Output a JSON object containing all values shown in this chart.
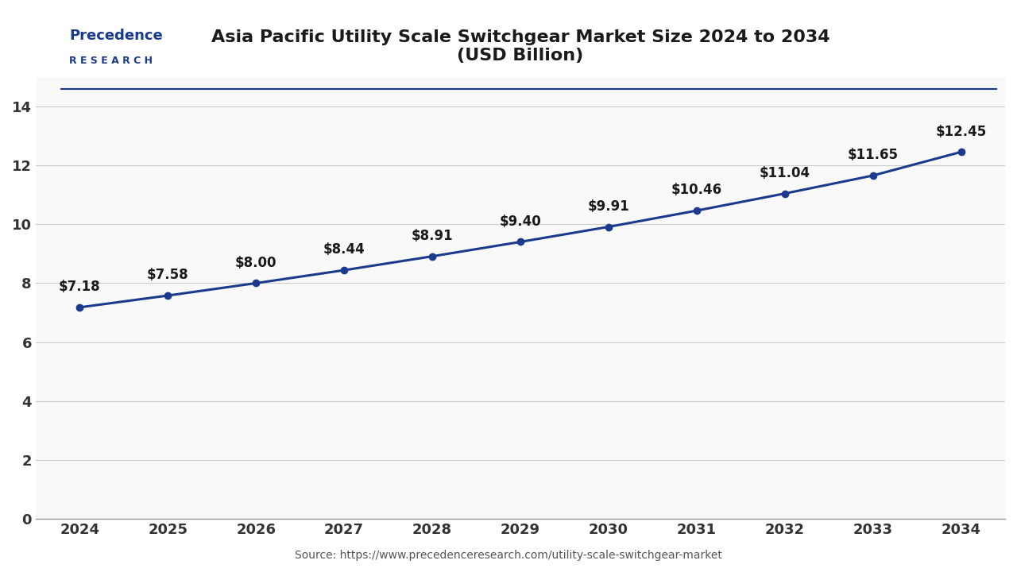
{
  "title_line1": "Asia Pacific Utility Scale Switchgear Market Size 2024 to 2034",
  "title_line2": "(USD Billion)",
  "years": [
    2024,
    2025,
    2026,
    2027,
    2028,
    2029,
    2030,
    2031,
    2032,
    2033,
    2034
  ],
  "values": [
    7.18,
    7.58,
    8.0,
    8.44,
    8.91,
    9.4,
    9.91,
    10.46,
    11.04,
    11.65,
    12.45
  ],
  "labels": [
    "$7.18",
    "$7.58",
    "$8.00",
    "$8.44",
    "$8.91",
    "$9.40",
    "$9.91",
    "$10.46",
    "$11.04",
    "$11.65",
    "$12.45"
  ],
  "line_color": "#1a3a8c",
  "marker_color": "#1a3a8c",
  "bg_color": "#ffffff",
  "plot_bg_color": "#f9f9f9",
  "grid_color": "#cccccc",
  "title_color": "#1a1a1a",
  "tick_color": "#333333",
  "label_color": "#1a1a1a",
  "source_text": "Source: https://www.precedenceresearch.com/utility-scale-switchgear-market",
  "ylim": [
    0,
    15
  ],
  "yticks": [
    0,
    2,
    4,
    6,
    8,
    10,
    12,
    14
  ],
  "title_fontsize": 16,
  "tick_fontsize": 13,
  "label_fontsize": 12,
  "source_fontsize": 10,
  "line_width": 2.2,
  "marker_size": 6,
  "logo_text1": "Precedence",
  "logo_text2": "R E S E A R C H",
  "logo_color": "#1a3a8c",
  "separator_color": "#1a3a8c"
}
